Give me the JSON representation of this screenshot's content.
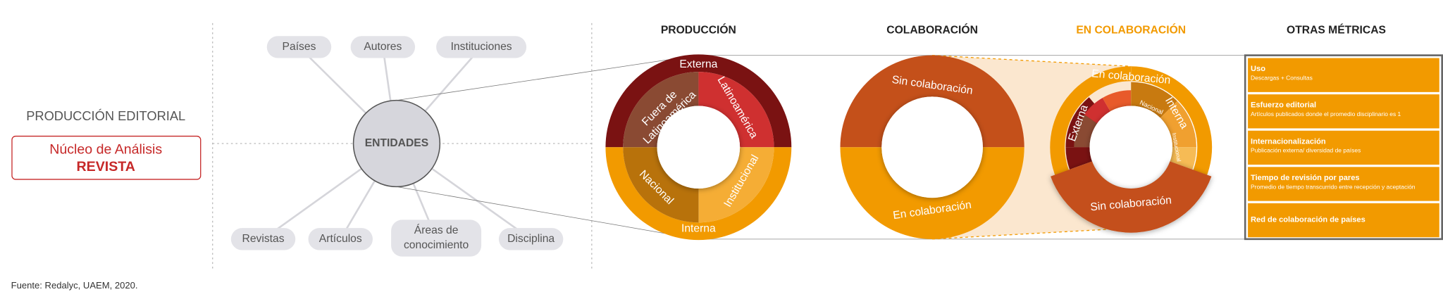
{
  "left": {
    "title": "PRODUCCIÓN EDITORIAL",
    "box": {
      "line1": "Núcleo de Análisis",
      "line2": "REVISTA"
    }
  },
  "entities": {
    "center": "ENTIDADES",
    "top": [
      "Países",
      "Autores",
      "Instituciones"
    ],
    "bottom": [
      "Revistas",
      "Artículos",
      [
        "Áreas de",
        "conocimiento"
      ],
      "Disciplina"
    ]
  },
  "sections": {
    "produccion": {
      "title": "PRODUCCIÓN",
      "outer_top": "Externa",
      "outer_bottom": "Interna",
      "fuera": [
        "Fuera de",
        "Latinoamérica"
      ],
      "latam": "Latinoamérica",
      "nacional": "Nacional",
      "institucional": "Institucional"
    },
    "colaboracion": {
      "title": "COLABORACIÓN",
      "top": "Sin colaboración",
      "bottom": "En colaboración"
    },
    "en_colaboracion": {
      "title": "EN COLABORACIÓN",
      "outer": "En colaboración",
      "externa": "Externa",
      "interna": "Interna",
      "nacional": "Nacional",
      "institucional": "Institucional",
      "sin": "Sin colaboración"
    },
    "otras": {
      "title": "OTRAS MÉTRICAS",
      "items": [
        {
          "title": "Uso",
          "subtitle": "Descargas + Consultas"
        },
        {
          "title": "Esfuerzo editorial",
          "subtitle": "Artículos publicados donde el promedio disciplinario es 1"
        },
        {
          "title": "Internacionalización",
          "subtitle": "Publicación externa/ diversidad de países"
        },
        {
          "title": "Tiempo de revisión por pares",
          "subtitle": "Promedio de tiempo transcurrido entre recepción y aceptación"
        },
        {
          "title": "Red de colaboración de países",
          "subtitle": null
        }
      ]
    }
  },
  "source": "Fuente: Redalyc, UAEM, 2020."
}
